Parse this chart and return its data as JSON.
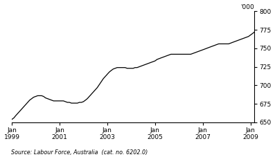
{
  "source_text": "Source: Labour Force, Australia  (cat. no. 6202.0)",
  "ylim": [
    650,
    800
  ],
  "yticks": [
    650,
    675,
    700,
    725,
    750,
    775,
    800
  ],
  "line_color": "#000000",
  "line_width": 0.9,
  "bg_color": "#ffffff",
  "xtick_years": [
    1999,
    2001,
    2003,
    2005,
    2007,
    2009
  ],
  "data_points": [
    654,
    656,
    659,
    662,
    665,
    668,
    671,
    674,
    677,
    680,
    682,
    684,
    685,
    686,
    686,
    686,
    685,
    683,
    682,
    681,
    680,
    679,
    679,
    679,
    679,
    679,
    679,
    678,
    677,
    677,
    676,
    676,
    676,
    676,
    677,
    677,
    678,
    680,
    682,
    685,
    688,
    691,
    694,
    697,
    701,
    705,
    709,
    712,
    715,
    718,
    720,
    722,
    723,
    724,
    724,
    724,
    724,
    724,
    723,
    723,
    723,
    723,
    724,
    724,
    725,
    726,
    727,
    728,
    729,
    730,
    731,
    732,
    733,
    735,
    736,
    737,
    738,
    739,
    740,
    741,
    742,
    742,
    742,
    742,
    742,
    742,
    742,
    742,
    742,
    742,
    742,
    743,
    744,
    745,
    746,
    747,
    748,
    749,
    750,
    751,
    752,
    753,
    754,
    755,
    756,
    756,
    756,
    756,
    756,
    756,
    757,
    758,
    759,
    760,
    761,
    762,
    763,
    764,
    765,
    766,
    768,
    770,
    772,
    774,
    776,
    777,
    778,
    778,
    778,
    778,
    778,
    778,
    776,
    774,
    772,
    771,
    770,
    770,
    771,
    772,
    773,
    774,
    775,
    776,
    778,
    779,
    780,
    780,
    780,
    779,
    778,
    777,
    776,
    775,
    775,
    775,
    775,
    776,
    777,
    778,
    779,
    780,
    780,
    779,
    778,
    777,
    776,
    776,
    776,
    777,
    778,
    780,
    782,
    783,
    784,
    785,
    786,
    787,
    787,
    787,
    787,
    787,
    787,
    787,
    787,
    787,
    787,
    787,
    787,
    787,
    787,
    787
  ]
}
